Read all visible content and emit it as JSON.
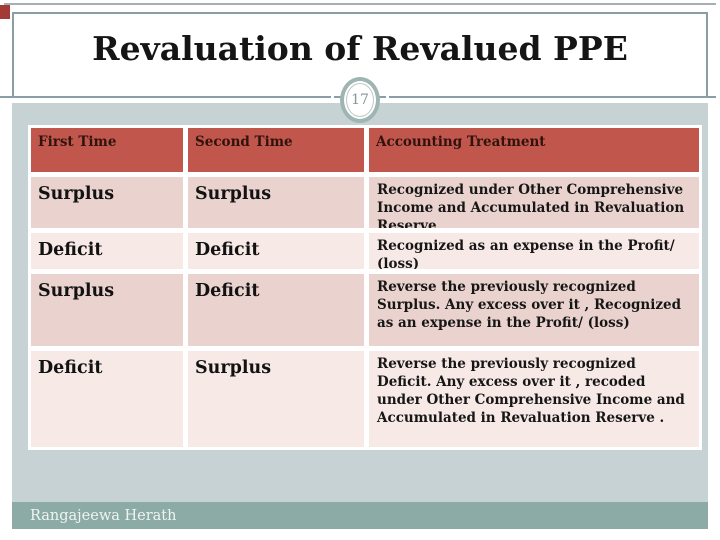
{
  "slide": {
    "title": "Revaluation of Revalued PPE",
    "page_number": "17",
    "footer": "Rangajeewa Herath"
  },
  "accents": {
    "header_red": "#c0564c",
    "row_dark_pink": "#ead3ce",
    "row_light_pink": "#f7e9e6",
    "content_background": "#c7d2d5",
    "footer_teal": "#8caaa6",
    "badge_ring": "#9fb5b1",
    "rule_gray": "#8b9da5",
    "accent_mark_red": "#a33a35"
  },
  "table": {
    "headers": [
      "First Time",
      "Second Time",
      "Accounting Treatment"
    ],
    "rows": [
      {
        "first_time": "Surplus",
        "second_time": "Surplus",
        "accounting_treatment": "Recognized under Other Comprehensive Income and Accumulated in Revaluation Reserve"
      },
      {
        "first_time": "Deficit",
        "second_time": "Deficit",
        "accounting_treatment": "Recognized as an expense in the Profit/ (loss)"
      },
      {
        "first_time": "Surplus",
        "second_time": "Deficit",
        "accounting_treatment": "Reverse the previously recognized Surplus. Any excess over it , Recognized as an expense in the Profit/ (loss)"
      },
      {
        "first_time": "Deficit",
        "second_time": "Surplus",
        "accounting_treatment": "Reverse the previously recognized Deficit. Any excess over it , recoded under Other Comprehensive Income and Accumulated in Revaluation Reserve ."
      }
    ]
  }
}
